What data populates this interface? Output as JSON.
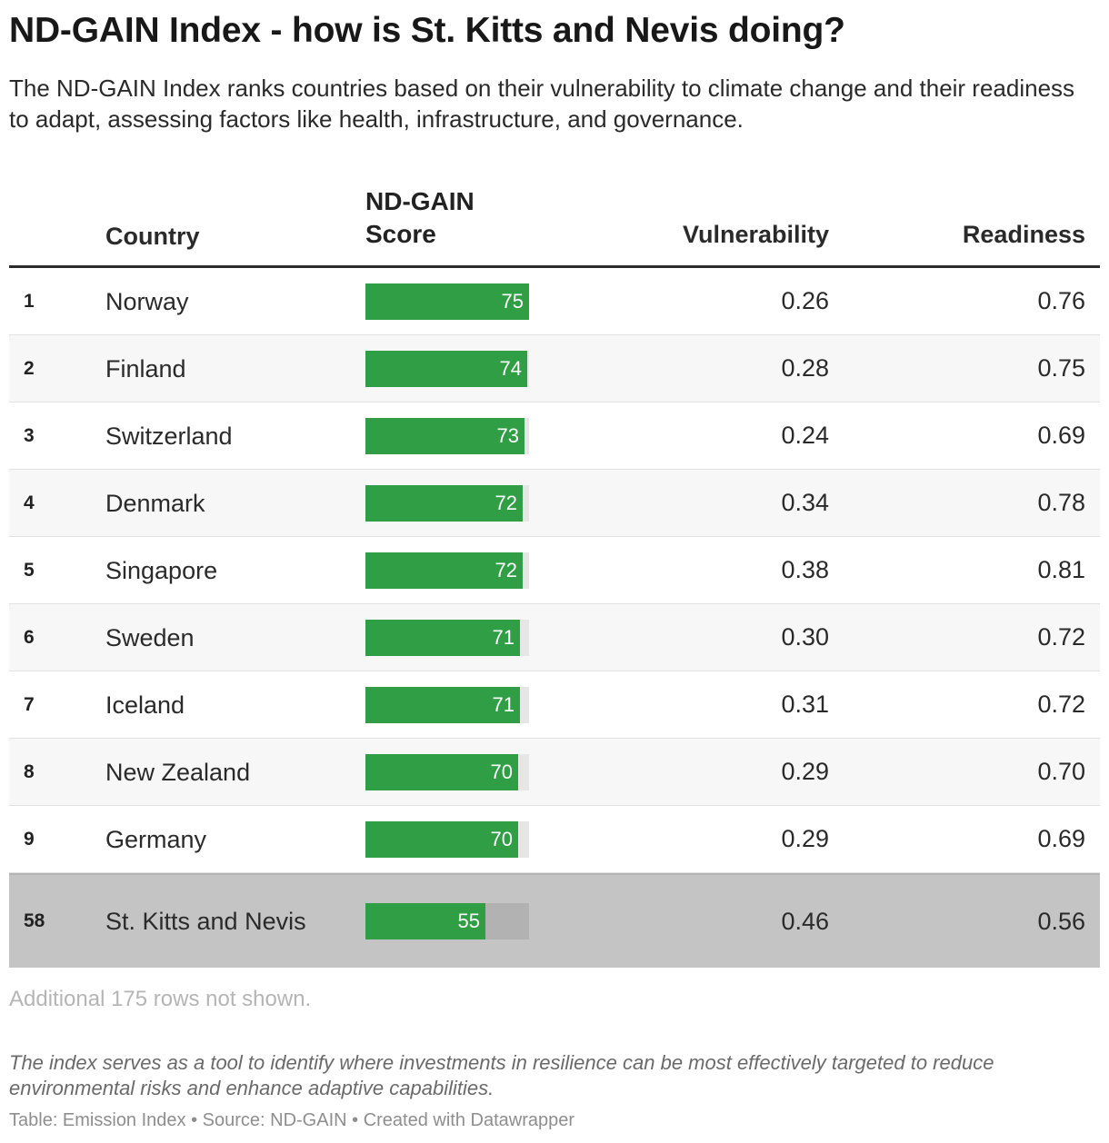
{
  "title": "ND-GAIN Index - how is St. Kitts and Nevis doing?",
  "subtitle": "The ND-GAIN Index ranks countries based on their vulnerability to climate change and their readiness to adapt, assessing factors like health, infrastructure, and governance.",
  "columns": {
    "country": "Country",
    "score": "ND-GAIN Score",
    "vulnerability": "Vulnerability",
    "readiness": "Readiness"
  },
  "colors": {
    "bar": "#2f9e44",
    "track": "#e6e6e6",
    "highlight_row": "#c4c4c4"
  },
  "chart_data": {
    "type": "table",
    "bar_column": "ND-GAIN Score",
    "bar_max": 75,
    "rows": [
      {
        "rank": "1",
        "country": "Norway",
        "score": 75,
        "vulnerability": "0.26",
        "readiness": "0.76"
      },
      {
        "rank": "2",
        "country": "Finland",
        "score": 74,
        "vulnerability": "0.28",
        "readiness": "0.75"
      },
      {
        "rank": "3",
        "country": "Switzerland",
        "score": 73,
        "vulnerability": "0.24",
        "readiness": "0.69"
      },
      {
        "rank": "4",
        "country": "Denmark",
        "score": 72,
        "vulnerability": "0.34",
        "readiness": "0.78"
      },
      {
        "rank": "5",
        "country": "Singapore",
        "score": 72,
        "vulnerability": "0.38",
        "readiness": "0.81"
      },
      {
        "rank": "6",
        "country": "Sweden",
        "score": 71,
        "vulnerability": "0.30",
        "readiness": "0.72"
      },
      {
        "rank": "7",
        "country": "Iceland",
        "score": 71,
        "vulnerability": "0.31",
        "readiness": "0.72"
      },
      {
        "rank": "8",
        "country": "New Zealand",
        "score": 70,
        "vulnerability": "0.29",
        "readiness": "0.70"
      },
      {
        "rank": "9",
        "country": "Germany",
        "score": 70,
        "vulnerability": "0.29",
        "readiness": "0.69"
      },
      {
        "rank": "58",
        "country": "St. Kitts and Nevis",
        "score": 55,
        "vulnerability": "0.46",
        "readiness": "0.56",
        "highlighted": true
      }
    ]
  },
  "more_rows": "Additional 175 rows not shown.",
  "note": "The index serves as a tool to identify where investments in resilience can be most effectively targeted to reduce environmental risks and enhance adaptive capabilities.",
  "footer": "Table: Emission Index • Source: ND-GAIN • Created with Datawrapper"
}
